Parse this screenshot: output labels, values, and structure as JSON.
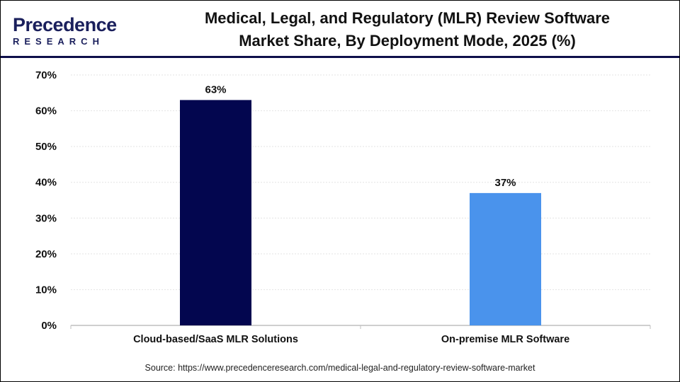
{
  "logo": {
    "line1": "Precedence",
    "line2": "RESEARCH"
  },
  "chart_data": {
    "type": "bar",
    "title": "Medical, Legal, and Regulatory (MLR) Review Software Market Share, By Deployment Mode, 2025 (%)",
    "title_line1": "Medical, Legal, and Regulatory (MLR) Review Software",
    "title_line2": "Market Share, By Deployment Mode, 2025 (%)",
    "categories": [
      "Cloud-based/SaaS MLR Solutions",
      "On-premise MLR Software"
    ],
    "values": [
      63,
      37
    ],
    "data_labels": [
      "63%",
      "37%"
    ],
    "colors": [
      "#03064f",
      "#4a93ec"
    ],
    "ylim": [
      0,
      70
    ],
    "yticks": [
      "0%",
      "10%",
      "20%",
      "30%",
      "40%",
      "50%",
      "60%",
      "70%"
    ],
    "grid": true,
    "xlabel": "",
    "ylabel": ""
  },
  "source": "Source: https://www.precedenceresearch.com/medical-legal-and-regulatory-review-software-market"
}
